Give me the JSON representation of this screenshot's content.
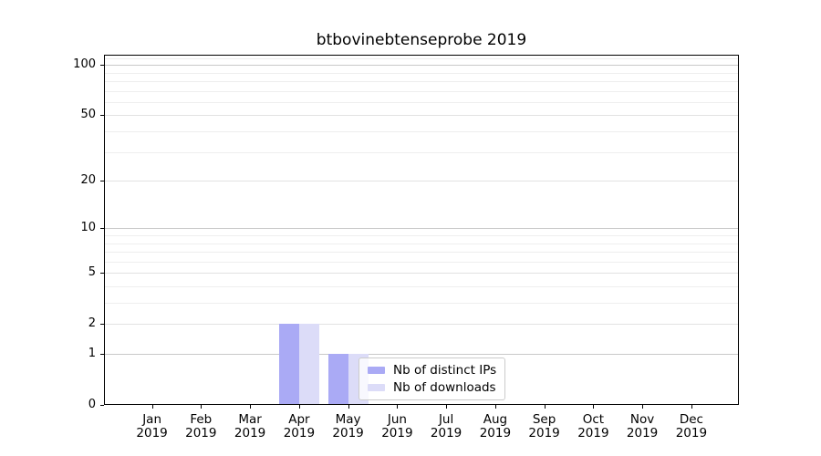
{
  "figure": {
    "background": "#ffffff",
    "text_color": "#000000",
    "axis_color": "#000000"
  },
  "chart_data": {
    "type": "bar",
    "title": "btbovinebtenseprobe 2019",
    "xlabel": "",
    "ylabel": "",
    "year": "2019",
    "months": [
      "Jan",
      "Feb",
      "Mar",
      "Apr",
      "May",
      "Jun",
      "Jul",
      "Aug",
      "Sep",
      "Oct",
      "Nov",
      "Dec"
    ],
    "series": [
      {
        "name": "Nb of distinct IPs",
        "color": "#aaaaf5",
        "values": [
          0,
          0,
          0,
          2,
          1,
          0,
          0,
          0,
          0,
          0,
          0,
          0
        ]
      },
      {
        "name": "Nb of downloads",
        "color": "#dcdcf8",
        "values": [
          0,
          0,
          0,
          2,
          1,
          0,
          0,
          0,
          0,
          0,
          0,
          0
        ]
      }
    ],
    "yscale": "log1p",
    "ylim": [
      0,
      115
    ],
    "y_ticks_labeled": [
      0,
      1,
      2,
      5,
      10,
      20,
      50,
      100
    ],
    "y_decade_ticks": [
      1,
      10,
      100
    ],
    "y_mid_ticks": [
      2,
      5,
      20,
      50
    ],
    "y_minor_ticks": [
      3,
      4,
      6,
      7,
      8,
      9,
      30,
      40,
      60,
      70,
      80,
      90,
      110
    ],
    "grid": true,
    "grid_color_major": "#c9c9c9",
    "grid_color_mid": "#e2e2e2",
    "grid_color_minor": "#eeeeee",
    "legend_location": "inside lower center",
    "legend_border_color": "#cbcbcb"
  }
}
